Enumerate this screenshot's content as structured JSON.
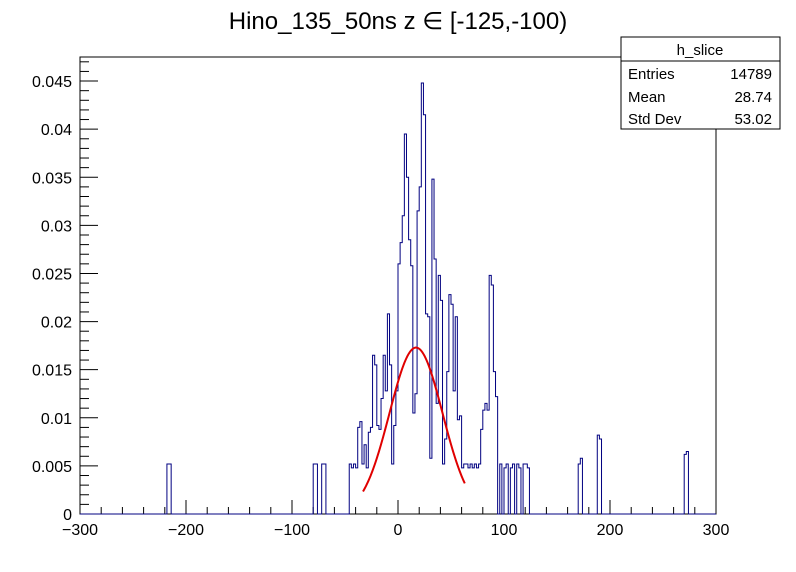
{
  "chart_data": {
    "type": "histogram",
    "title": "Hino_135_50ns z  ∈ [-125,-100)",
    "xlabel": "",
    "ylabel": "",
    "xlim": [
      -300,
      300
    ],
    "ylim": [
      0,
      0.0475
    ],
    "x_ticks": [
      -300,
      -200,
      -100,
      0,
      100,
      200,
      300
    ],
    "x_tick_labels": [
      "−300",
      "−200",
      "−100",
      "0",
      "100",
      "200",
      "300"
    ],
    "y_ticks": [
      0,
      0.005,
      0.01,
      0.015,
      0.02,
      0.025,
      0.03,
      0.035,
      0.04,
      0.045
    ],
    "y_tick_labels": [
      "0",
      "0.005",
      "0.01",
      "0.015",
      "0.02",
      "0.025",
      "0.03",
      "0.035",
      "0.04",
      "0.045"
    ],
    "grid": false,
    "hist_color": "#000080",
    "fit_color": "#e00000",
    "stats_box": {
      "title": "h_slice",
      "rows": [
        {
          "label": "Entries",
          "value": "14789"
        },
        {
          "label": "Mean",
          "value": "28.74"
        },
        {
          "label": "Std Dev",
          "value": "53.02"
        }
      ],
      "placement": "top-right"
    },
    "fit": {
      "function": "gaus",
      "constant": 0.0173,
      "mean": 17,
      "sigma": 25,
      "range": [
        -33,
        63
      ]
    },
    "bin_width": 2,
    "bins": [
      [
        -218,
        0.0052
      ],
      [
        -216,
        0.0052
      ],
      [
        -80,
        0.0052
      ],
      [
        -78,
        0.0052
      ],
      [
        -72,
        0.0052
      ],
      [
        -70,
        0.0052
      ],
      [
        -46,
        0.0052
      ],
      [
        -44,
        0.0048
      ],
      [
        -42,
        0.0052
      ],
      [
        -40,
        0.0048
      ],
      [
        -38,
        0.009
      ],
      [
        -36,
        0.0096
      ],
      [
        -34,
        0.0052
      ],
      [
        -32,
        0.0072
      ],
      [
        -30,
        0.0048
      ],
      [
        -28,
        0.0085
      ],
      [
        -26,
        0.009
      ],
      [
        -24,
        0.0165
      ],
      [
        -22,
        0.0155
      ],
      [
        -20,
        0.0092
      ],
      [
        -18,
        0.0088
      ],
      [
        -16,
        0.012
      ],
      [
        -14,
        0.0165
      ],
      [
        -12,
        0.0128
      ],
      [
        -10,
        0.0208
      ],
      [
        -8,
        0.0155
      ],
      [
        -6,
        0.0052
      ],
      [
        -4,
        0.0092
      ],
      [
        -2,
        0.0128
      ],
      [
        0,
        0.026
      ],
      [
        2,
        0.0282
      ],
      [
        4,
        0.031
      ],
      [
        6,
        0.0395
      ],
      [
        8,
        0.035
      ],
      [
        10,
        0.0285
      ],
      [
        12,
        0.0258
      ],
      [
        14,
        0.0105
      ],
      [
        16,
        0.0125
      ],
      [
        18,
        0.0315
      ],
      [
        20,
        0.034
      ],
      [
        22,
        0.0448
      ],
      [
        24,
        0.0415
      ],
      [
        26,
        0.0208
      ],
      [
        28,
        0.0205
      ],
      [
        30,
        0.0058
      ],
      [
        32,
        0.0348
      ],
      [
        34,
        0.0265
      ],
      [
        36,
        0.0115
      ],
      [
        38,
        0.0248
      ],
      [
        40,
        0.0222
      ],
      [
        42,
        0.0052
      ],
      [
        44,
        0.0078
      ],
      [
        46,
        0.0148
      ],
      [
        48,
        0.0228
      ],
      [
        50,
        0.0218
      ],
      [
        52,
        0.0128
      ],
      [
        54,
        0.0205
      ],
      [
        56,
        0.0098
      ],
      [
        58,
        0.0102
      ],
      [
        60,
        0.0048
      ],
      [
        62,
        0.0052
      ],
      [
        64,
        0.0052
      ],
      [
        66,
        0.0048
      ],
      [
        68,
        0.0052
      ],
      [
        70,
        0.0048
      ],
      [
        72,
        0.0052
      ],
      [
        74,
        0.0048
      ],
      [
        76,
        0.0052
      ],
      [
        78,
        0.0088
      ],
      [
        80,
        0.0108
      ],
      [
        82,
        0.0115
      ],
      [
        84,
        0.0108
      ],
      [
        86,
        0.0248
      ],
      [
        88,
        0.0238
      ],
      [
        90,
        0.0148
      ],
      [
        92,
        0.0122
      ],
      [
        96,
        0.0052
      ],
      [
        100,
        0.0048
      ],
      [
        102,
        0.0052
      ],
      [
        106,
        0.0048
      ],
      [
        108,
        0.0052
      ],
      [
        112,
        0.0052
      ],
      [
        114,
        0.0048
      ],
      [
        118,
        0.0052
      ],
      [
        120,
        0.0052
      ],
      [
        122,
        0.0048
      ],
      [
        170,
        0.0052
      ],
      [
        172,
        0.0058
      ],
      [
        188,
        0.0082
      ],
      [
        190,
        0.0078
      ],
      [
        270,
        0.0062
      ],
      [
        272,
        0.0065
      ]
    ]
  }
}
